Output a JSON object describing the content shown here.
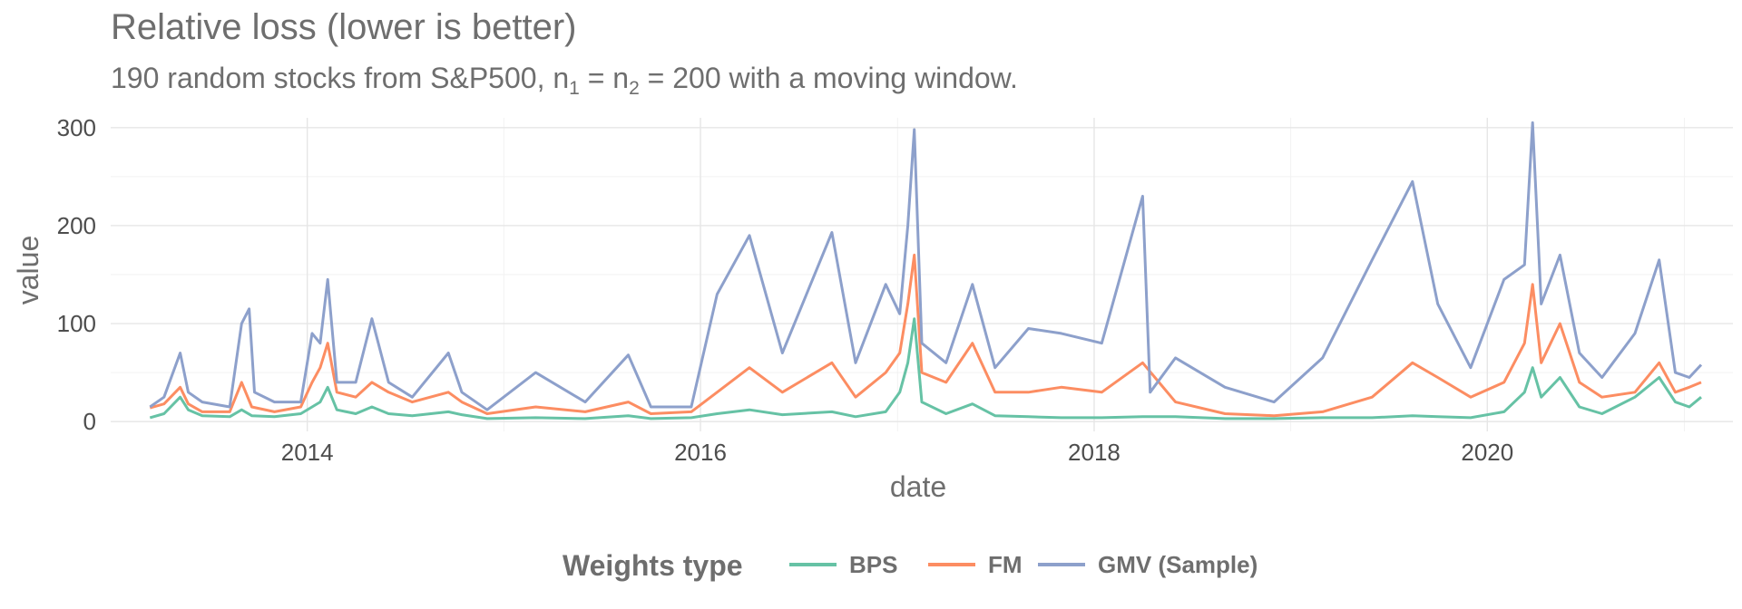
{
  "chart_data": {
    "type": "line",
    "title": "Relative loss (lower is better)",
    "subtitle": {
      "prefix": "190 random stocks from S&P500,  n",
      "sub1": "1",
      "middle": " = n",
      "sub2": "2",
      "suffix": " = 200 with a moving window."
    },
    "xlabel": "date",
    "ylabel": "value",
    "xlim": [
      "2013-01-01",
      "2021-04-01"
    ],
    "ylim": [
      -10,
      310
    ],
    "x_ticks": [
      "2014-01-01",
      "2016-01-01",
      "2018-01-01",
      "2020-01-01"
    ],
    "x_tick_labels": [
      "2014",
      "2016",
      "2018",
      "2020"
    ],
    "y_ticks": [
      0,
      100,
      200,
      300
    ],
    "y_tick_labels": [
      "0",
      "100",
      "200",
      "300"
    ],
    "grid": true,
    "legend": {
      "title": "Weights type",
      "position": "bottom",
      "entries": [
        "BPS",
        "FM",
        "GMV (Sample)"
      ]
    },
    "series": [
      {
        "name": "BPS",
        "color": "#66c2a5",
        "points": [
          [
            "2013-03-15",
            4
          ],
          [
            "2013-04-10",
            8
          ],
          [
            "2013-05-10",
            25
          ],
          [
            "2013-05-25",
            12
          ],
          [
            "2013-06-20",
            6
          ],
          [
            "2013-08-10",
            5
          ],
          [
            "2013-09-01",
            12
          ],
          [
            "2013-09-20",
            6
          ],
          [
            "2013-11-01",
            5
          ],
          [
            "2013-12-20",
            8
          ],
          [
            "2014-01-10",
            15
          ],
          [
            "2014-01-25",
            20
          ],
          [
            "2014-02-08",
            35
          ],
          [
            "2014-02-25",
            12
          ],
          [
            "2014-04-01",
            8
          ],
          [
            "2014-05-01",
            15
          ],
          [
            "2014-06-01",
            8
          ],
          [
            "2014-07-15",
            6
          ],
          [
            "2014-09-20",
            10
          ],
          [
            "2014-10-15",
            7
          ],
          [
            "2014-12-01",
            3
          ],
          [
            "2015-03-01",
            4
          ],
          [
            "2015-06-01",
            3
          ],
          [
            "2015-08-20",
            6
          ],
          [
            "2015-10-01",
            3
          ],
          [
            "2015-12-15",
            4
          ],
          [
            "2016-02-01",
            8
          ],
          [
            "2016-04-01",
            12
          ],
          [
            "2016-06-01",
            7
          ],
          [
            "2016-09-01",
            10
          ],
          [
            "2016-10-15",
            5
          ],
          [
            "2016-12-10",
            10
          ],
          [
            "2017-01-05",
            30
          ],
          [
            "2017-01-20",
            60
          ],
          [
            "2017-02-01",
            105
          ],
          [
            "2017-02-15",
            20
          ],
          [
            "2017-04-01",
            8
          ],
          [
            "2017-05-20",
            18
          ],
          [
            "2017-07-01",
            6
          ],
          [
            "2017-09-01",
            5
          ],
          [
            "2017-11-01",
            4
          ],
          [
            "2018-01-15",
            4
          ],
          [
            "2018-04-01",
            5
          ],
          [
            "2018-06-01",
            5
          ],
          [
            "2018-09-01",
            3
          ],
          [
            "2018-12-01",
            3
          ],
          [
            "2019-03-01",
            4
          ],
          [
            "2019-06-01",
            4
          ],
          [
            "2019-08-15",
            6
          ],
          [
            "2019-10-01",
            5
          ],
          [
            "2019-12-01",
            4
          ],
          [
            "2020-02-01",
            10
          ],
          [
            "2020-03-10",
            30
          ],
          [
            "2020-03-25",
            55
          ],
          [
            "2020-04-10",
            25
          ],
          [
            "2020-05-15",
            45
          ],
          [
            "2020-06-20",
            15
          ],
          [
            "2020-08-01",
            8
          ],
          [
            "2020-10-01",
            25
          ],
          [
            "2020-11-15",
            45
          ],
          [
            "2020-12-15",
            20
          ],
          [
            "2021-01-10",
            15
          ],
          [
            "2021-02-01",
            25
          ]
        ]
      },
      {
        "name": "FM",
        "color": "#fc8d62",
        "points": [
          [
            "2013-03-15",
            14
          ],
          [
            "2013-04-10",
            18
          ],
          [
            "2013-05-10",
            35
          ],
          [
            "2013-05-25",
            18
          ],
          [
            "2013-06-20",
            10
          ],
          [
            "2013-08-10",
            10
          ],
          [
            "2013-09-01",
            40
          ],
          [
            "2013-09-20",
            15
          ],
          [
            "2013-11-01",
            10
          ],
          [
            "2013-12-20",
            15
          ],
          [
            "2014-01-10",
            40
          ],
          [
            "2014-01-25",
            55
          ],
          [
            "2014-02-08",
            80
          ],
          [
            "2014-02-25",
            30
          ],
          [
            "2014-04-01",
            25
          ],
          [
            "2014-05-01",
            40
          ],
          [
            "2014-06-01",
            30
          ],
          [
            "2014-07-15",
            20
          ],
          [
            "2014-09-20",
            30
          ],
          [
            "2014-10-15",
            20
          ],
          [
            "2014-12-01",
            8
          ],
          [
            "2015-03-01",
            15
          ],
          [
            "2015-06-01",
            10
          ],
          [
            "2015-08-20",
            20
          ],
          [
            "2015-10-01",
            8
          ],
          [
            "2015-12-15",
            10
          ],
          [
            "2016-02-01",
            30
          ],
          [
            "2016-04-01",
            55
          ],
          [
            "2016-06-01",
            30
          ],
          [
            "2016-09-01",
            60
          ],
          [
            "2016-10-15",
            25
          ],
          [
            "2016-12-10",
            50
          ],
          [
            "2017-01-05",
            70
          ],
          [
            "2017-01-20",
            120
          ],
          [
            "2017-02-01",
            170
          ],
          [
            "2017-02-15",
            50
          ],
          [
            "2017-04-01",
            40
          ],
          [
            "2017-05-20",
            80
          ],
          [
            "2017-07-01",
            30
          ],
          [
            "2017-09-01",
            30
          ],
          [
            "2017-11-01",
            35
          ],
          [
            "2018-01-15",
            30
          ],
          [
            "2018-04-01",
            60
          ],
          [
            "2018-06-01",
            20
          ],
          [
            "2018-09-01",
            8
          ],
          [
            "2018-12-01",
            6
          ],
          [
            "2019-03-01",
            10
          ],
          [
            "2019-06-01",
            25
          ],
          [
            "2019-08-15",
            60
          ],
          [
            "2019-10-01",
            45
          ],
          [
            "2019-12-01",
            25
          ],
          [
            "2020-02-01",
            40
          ],
          [
            "2020-03-10",
            80
          ],
          [
            "2020-03-25",
            140
          ],
          [
            "2020-04-10",
            60
          ],
          [
            "2020-05-15",
            100
          ],
          [
            "2020-06-20",
            40
          ],
          [
            "2020-08-01",
            25
          ],
          [
            "2020-10-01",
            30
          ],
          [
            "2020-11-15",
            60
          ],
          [
            "2020-12-15",
            30
          ],
          [
            "2021-01-10",
            35
          ],
          [
            "2021-02-01",
            40
          ]
        ]
      },
      {
        "name": "GMV (Sample)",
        "color": "#8da0cb",
        "points": [
          [
            "2013-03-15",
            15
          ],
          [
            "2013-04-10",
            25
          ],
          [
            "2013-05-10",
            70
          ],
          [
            "2013-05-25",
            30
          ],
          [
            "2013-06-20",
            20
          ],
          [
            "2013-08-10",
            15
          ],
          [
            "2013-09-01",
            100
          ],
          [
            "2013-09-15",
            115
          ],
          [
            "2013-09-25",
            30
          ],
          [
            "2013-11-01",
            20
          ],
          [
            "2013-12-20",
            20
          ],
          [
            "2014-01-10",
            90
          ],
          [
            "2014-01-25",
            80
          ],
          [
            "2014-02-08",
            145
          ],
          [
            "2014-02-25",
            40
          ],
          [
            "2014-04-01",
            40
          ],
          [
            "2014-05-01",
            105
          ],
          [
            "2014-06-01",
            40
          ],
          [
            "2014-07-15",
            25
          ],
          [
            "2014-09-20",
            70
          ],
          [
            "2014-10-15",
            30
          ],
          [
            "2014-12-01",
            12
          ],
          [
            "2015-03-01",
            50
          ],
          [
            "2015-06-01",
            20
          ],
          [
            "2015-08-20",
            68
          ],
          [
            "2015-10-01",
            15
          ],
          [
            "2015-12-15",
            15
          ],
          [
            "2016-02-01",
            130
          ],
          [
            "2016-04-01",
            190
          ],
          [
            "2016-06-01",
            70
          ],
          [
            "2016-09-01",
            193
          ],
          [
            "2016-10-15",
            60
          ],
          [
            "2016-12-10",
            140
          ],
          [
            "2017-01-05",
            110
          ],
          [
            "2017-01-20",
            200
          ],
          [
            "2017-02-01",
            298
          ],
          [
            "2017-02-15",
            80
          ],
          [
            "2017-04-01",
            60
          ],
          [
            "2017-05-20",
            140
          ],
          [
            "2017-07-01",
            55
          ],
          [
            "2017-09-01",
            95
          ],
          [
            "2017-11-01",
            90
          ],
          [
            "2018-01-15",
            80
          ],
          [
            "2018-04-01",
            230
          ],
          [
            "2018-04-15",
            30
          ],
          [
            "2018-06-01",
            65
          ],
          [
            "2018-09-01",
            35
          ],
          [
            "2018-12-01",
            20
          ],
          [
            "2019-03-01",
            65
          ],
          [
            "2019-06-01",
            165
          ],
          [
            "2019-08-15",
            245
          ],
          [
            "2019-10-01",
            120
          ],
          [
            "2019-12-01",
            55
          ],
          [
            "2020-02-01",
            145
          ],
          [
            "2020-03-10",
            160
          ],
          [
            "2020-03-25",
            305
          ],
          [
            "2020-04-10",
            120
          ],
          [
            "2020-05-15",
            170
          ],
          [
            "2020-06-20",
            70
          ],
          [
            "2020-08-01",
            45
          ],
          [
            "2020-10-01",
            90
          ],
          [
            "2020-11-15",
            165
          ],
          [
            "2020-12-15",
            50
          ],
          [
            "2021-01-10",
            45
          ],
          [
            "2021-02-01",
            58
          ]
        ]
      }
    ]
  }
}
